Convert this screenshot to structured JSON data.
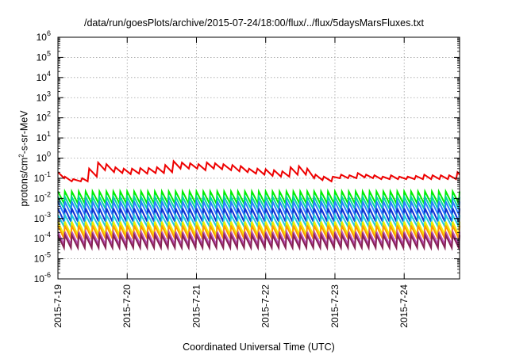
{
  "chart_data": {
    "type": "line",
    "title": "/data/run/goesPlots/archive/2015-07-24/18:00/flux/../flux/5daysMarsFluxes.txt",
    "xlabel": "Coordinated Universal Time (UTC)",
    "ylabel_prefix": "protons/cm",
    "ylabel_sup": "2",
    "ylabel_suffix": "-s-sr-MeV",
    "x_ticks": [
      "2015-7-19",
      "2015-7-20",
      "2015-7-21",
      "2015-7-22",
      "2015-7-23",
      "2015-7-24"
    ],
    "xlim_days": [
      0,
      5.8
    ],
    "y_scale": "log",
    "y_exponents": [
      -6,
      -5,
      -4,
      -3,
      -2,
      -1,
      0,
      1,
      2,
      3,
      4,
      5,
      6
    ],
    "ylim": [
      1e-06,
      1000000.0
    ],
    "grid": true,
    "legend": "none",
    "series": [
      {
        "color": "#ee0000",
        "x": [
          0,
          0.09,
          0.1,
          0.2,
          0.22,
          0.33,
          0.35,
          0.43,
          0.45,
          0.56,
          0.58,
          0.68,
          0.7,
          0.81,
          0.83,
          0.93,
          0.95,
          1.05,
          1.07,
          1.17,
          1.19,
          1.29,
          1.31,
          1.41,
          1.43,
          1.53,
          1.55,
          1.65,
          1.67,
          1.77,
          1.79,
          1.89,
          1.91,
          2.01,
          2.03,
          2.13,
          2.15,
          2.25,
          2.27,
          2.37,
          2.39,
          2.5,
          2.52,
          2.62,
          2.64,
          2.74,
          2.76,
          2.86,
          2.88,
          2.98,
          3.0,
          3.1,
          3.12,
          3.22,
          3.24,
          3.34,
          3.36,
          3.46,
          3.48,
          3.58,
          3.6,
          3.7,
          3.72,
          3.82,
          3.84,
          3.95,
          3.97,
          4.07,
          4.09,
          4.19,
          4.21,
          4.31,
          4.33,
          4.43,
          4.45,
          4.55,
          4.57,
          4.67,
          4.69,
          4.79,
          4.81,
          4.91,
          4.93,
          5.03,
          5.05,
          5.15,
          5.17,
          5.27,
          5.29,
          5.39,
          5.41,
          5.51,
          5.53,
          5.63,
          5.65,
          5.75,
          5.77,
          5.8
        ],
        "y": [
          0.2,
          0.1,
          0.12,
          0.07,
          0.09,
          0.07,
          0.1,
          0.07,
          0.3,
          0.12,
          0.6,
          0.25,
          0.5,
          0.2,
          0.35,
          0.18,
          0.3,
          0.16,
          0.3,
          0.17,
          0.32,
          0.17,
          0.32,
          0.18,
          0.35,
          0.18,
          0.45,
          0.2,
          0.7,
          0.3,
          0.6,
          0.3,
          0.55,
          0.3,
          0.5,
          0.25,
          0.6,
          0.3,
          0.55,
          0.28,
          0.5,
          0.25,
          0.45,
          0.22,
          0.4,
          0.2,
          0.3,
          0.17,
          0.3,
          0.15,
          0.28,
          0.13,
          0.25,
          0.12,
          0.22,
          0.12,
          0.35,
          0.15,
          0.4,
          0.15,
          0.3,
          0.1,
          0.15,
          0.08,
          0.12,
          0.07,
          0.12,
          0.1,
          0.15,
          0.1,
          0.14,
          0.1,
          0.18,
          0.11,
          0.15,
          0.1,
          0.14,
          0.09,
          0.12,
          0.09,
          0.14,
          0.09,
          0.12,
          0.09,
          0.12,
          0.09,
          0.13,
          0.09,
          0.15,
          0.09,
          0.14,
          0.09,
          0.14,
          0.09,
          0.14,
          0.09,
          0.2,
          0.15
        ]
      },
      {
        "color": "#00ee00",
        "cycle_days": 0.1,
        "peak": 0.022,
        "trough": 0.0055
      },
      {
        "color": "#00d8a0",
        "cycle_days": 0.1,
        "peak": 0.012,
        "trough": 0.003
      },
      {
        "color": "#2a7fff",
        "cycle_days": 0.1,
        "peak": 0.007,
        "trough": 0.0016
      },
      {
        "color": "#1030d0",
        "cycle_days": 0.1,
        "peak": 0.0032,
        "trough": 0.0007
      },
      {
        "color": "#20c8e0",
        "cycle_days": 0.1,
        "peak": 0.0015,
        "trough": 0.0004
      },
      {
        "color": "#eeee00",
        "cycle_days": 0.1,
        "peak": 0.0007,
        "trough": 0.00015
      },
      {
        "color": "#ff9900",
        "cycle_days": 0.1,
        "peak": 0.00045,
        "trough": 0.0001
      },
      {
        "color": "#bb55bb",
        "cycle_days": 0.1,
        "peak": 0.00022,
        "trough": 5e-05
      },
      {
        "color": "#882255",
        "cycle_days": 0.1,
        "peak": 0.00015,
        "trough": 3.5e-05
      }
    ]
  }
}
